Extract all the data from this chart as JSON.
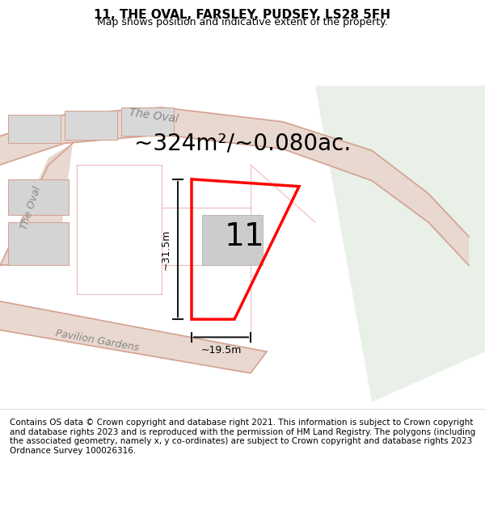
{
  "title": "11, THE OVAL, FARSLEY, PUDSEY, LS28 5FH",
  "subtitle": "Map shows position and indicative extent of the property.",
  "area_text": "~324m²/~0.080ac.",
  "number_label": "11",
  "dim_width": "~19.5m",
  "dim_height": "~31.5m",
  "footer": "Contains OS data © Crown copyright and database right 2021. This information is subject to Crown copyright and database rights 2023 and is reproduced with the permission of HM Land Registry. The polygons (including the associated geometry, namely x, y co-ordinates) are subject to Crown copyright and database rights 2023 Ordnance Survey 100026316.",
  "bg_color": "#f5f0f0",
  "map_bg": "#f5f0f0",
  "green_area_color": "#e8f0e8",
  "road_color": "#e8d8d0",
  "road_line_color": "#d4a090",
  "building_color": "#cccccc",
  "plot_line_color": "#ff0000",
  "dim_line_color": "#1a1a1a",
  "title_fontsize": 11,
  "subtitle_fontsize": 9,
  "area_fontsize": 20,
  "number_fontsize": 28,
  "footer_fontsize": 7.5
}
